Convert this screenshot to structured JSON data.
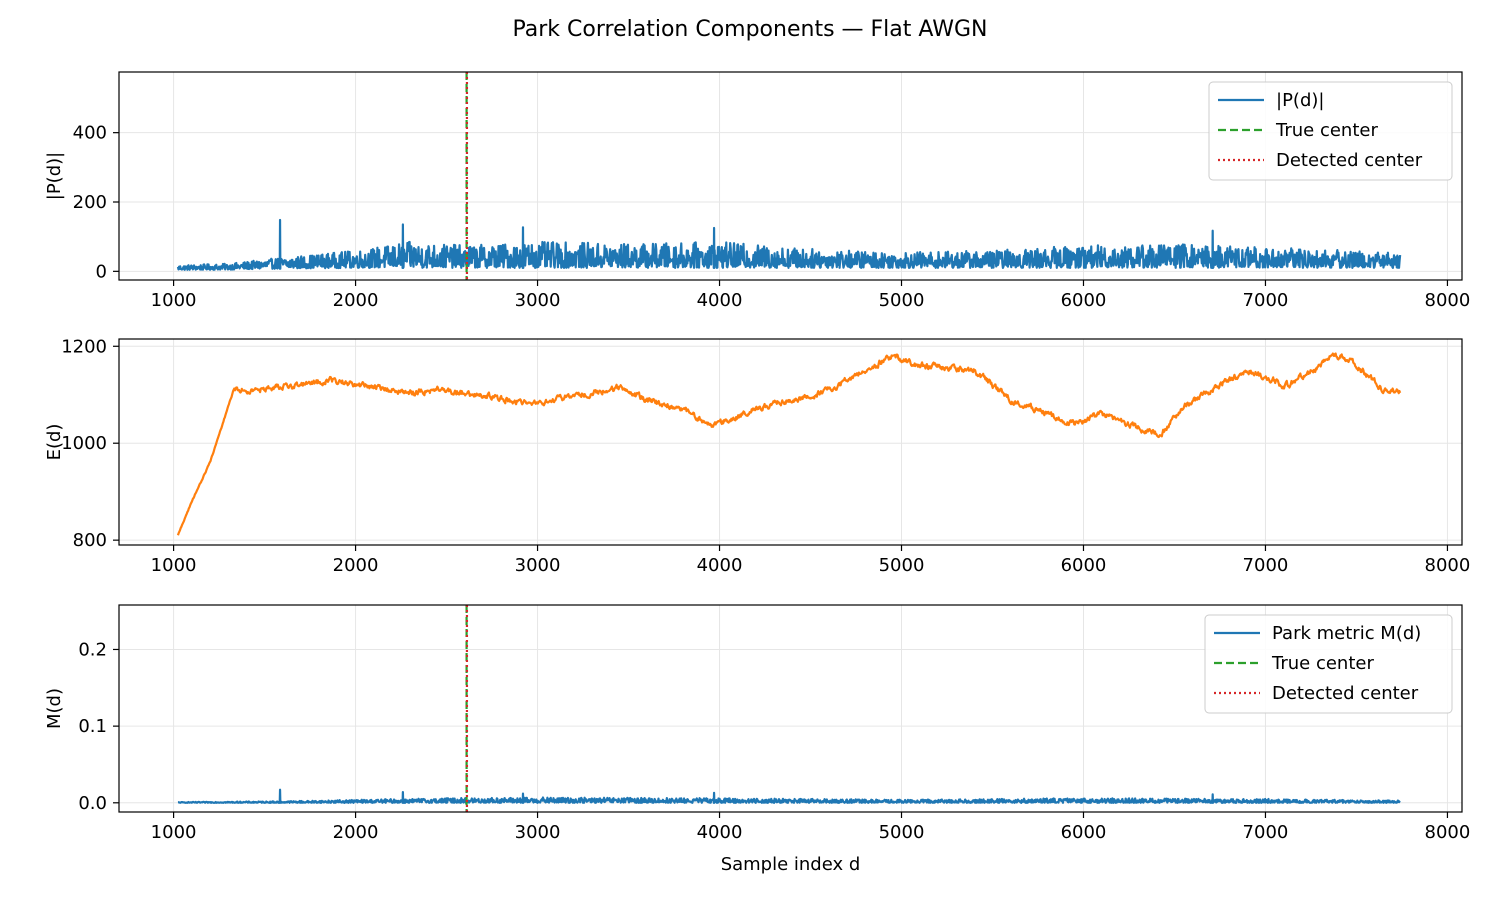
{
  "figure": {
    "title": "Park Correlation Components — Flat AWGN"
  },
  "colors": {
    "blue": "#1f77b4",
    "orange": "#ff7f0e",
    "green": "#2ca02c",
    "red": "#d62728",
    "grid": "#e6e6e6"
  },
  "chart_data": [
    {
      "type": "line",
      "id": "P",
      "ylabel": "|P(d)|",
      "xlabel": "",
      "xlim": [
        700,
        8080
      ],
      "ylim": [
        -25,
        575
      ],
      "xticks": [
        1000,
        2000,
        3000,
        4000,
        5000,
        6000,
        7000,
        8000
      ],
      "yticks": [
        0,
        200,
        400
      ],
      "grid": true,
      "legend_position": "upper right",
      "series": [
        {
          "name": "|P(d)|",
          "color": "#1f77b4",
          "style": "solid",
          "kind": "noise",
          "x_range": [
            1024,
            7740
          ],
          "envelope": {
            "x": [
              1024,
              1300,
              1600,
              2000,
              2300,
              2600,
              3000,
              3500,
              4000,
              4500,
              5000,
              5500,
              6000,
              6500,
              7000,
              7740
            ],
            "upper": [
              18,
              22,
              40,
              60,
              85,
              75,
              85,
              80,
              85,
              65,
              55,
              60,
              75,
              80,
              70,
              55
            ],
            "lower": [
              4,
              5,
              8,
              10,
              10,
              10,
              10,
              10,
              10,
              10,
              10,
              10,
              10,
              10,
              10,
              10
            ]
          },
          "spikes": [
            {
              "x": 1585,
              "y": 148
            },
            {
              "x": 2260,
              "y": 135
            },
            {
              "x": 2920,
              "y": 127
            },
            {
              "x": 3970,
              "y": 125
            },
            {
              "x": 6710,
              "y": 117
            }
          ]
        },
        {
          "name": "True center",
          "color": "#2ca02c",
          "style": "dashed",
          "kind": "vline",
          "x": 2610,
          "y_range": [
            0,
            575
          ]
        },
        {
          "name": "Detected center",
          "color": "#d62728",
          "style": "dotted",
          "kind": "vline",
          "x": 2612,
          "y_range": [
            0,
            575
          ]
        }
      ]
    },
    {
      "type": "line",
      "id": "E",
      "ylabel": "E(d)",
      "xlabel": "",
      "xlim": [
        700,
        8080
      ],
      "ylim": [
        790,
        1215
      ],
      "xticks": [
        1000,
        2000,
        3000,
        4000,
        5000,
        6000,
        7000,
        8000
      ],
      "yticks": [
        800,
        1000,
        1200
      ],
      "grid": true,
      "series": [
        {
          "name": "E(d)",
          "color": "#ff7f0e",
          "style": "solid",
          "kind": "walk",
          "x": [
            1024,
            1100,
            1200,
            1330,
            1400,
            1550,
            1700,
            1850,
            2000,
            2300,
            2450,
            2700,
            2900,
            3000,
            3100,
            3300,
            3450,
            3600,
            3800,
            3950,
            4200,
            4400,
            4500,
            4650,
            4800,
            4950,
            5100,
            5400,
            5600,
            5800,
            5950,
            6100,
            6350,
            6430,
            6550,
            6750,
            6900,
            7050,
            7100,
            7300,
            7350,
            7450,
            7650,
            7740
          ],
          "y": [
            810,
            880,
            960,
            1110,
            1108,
            1115,
            1120,
            1130,
            1122,
            1105,
            1110,
            1100,
            1085,
            1082,
            1090,
            1105,
            1115,
            1090,
            1070,
            1035,
            1070,
            1090,
            1095,
            1120,
            1150,
            1180,
            1160,
            1150,
            1090,
            1060,
            1040,
            1060,
            1025,
            1020,
            1075,
            1120,
            1150,
            1130,
            1115,
            1160,
            1180,
            1175,
            1110,
            1110
          ]
        }
      ]
    },
    {
      "type": "line",
      "id": "M",
      "ylabel": "M(d)",
      "xlabel": "Sample index d",
      "xlim": [
        700,
        8080
      ],
      "ylim": [
        -0.012,
        0.258
      ],
      "xticks": [
        1000,
        2000,
        3000,
        4000,
        5000,
        6000,
        7000,
        8000
      ],
      "yticks": [
        0.0,
        0.1,
        0.2
      ],
      "grid": true,
      "legend_position": "upper right",
      "series": [
        {
          "name": "Park metric M(d)",
          "color": "#1f77b4",
          "style": "solid",
          "kind": "noise",
          "x_range": [
            1024,
            7740
          ],
          "envelope": {
            "x": [
              1024,
              1600,
              2000,
              2500,
              3000,
              4000,
              5000,
              6000,
              7000,
              7740
            ],
            "upper": [
              0.001,
              0.002,
              0.004,
              0.006,
              0.007,
              0.006,
              0.004,
              0.006,
              0.005,
              0.003
            ],
            "lower": [
              0.0,
              0.0,
              0.0,
              0.0,
              0.0,
              0.0,
              0.0,
              0.0,
              0.0,
              0.0
            ]
          },
          "spikes": [
            {
              "x": 1585,
              "y": 0.017
            },
            {
              "x": 2260,
              "y": 0.014
            },
            {
              "x": 2920,
              "y": 0.012
            },
            {
              "x": 3970,
              "y": 0.013
            },
            {
              "x": 6710,
              "y": 0.011
            }
          ]
        },
        {
          "name": "True center",
          "color": "#2ca02c",
          "style": "dashed",
          "kind": "vline",
          "x": 2610,
          "y_range": [
            0,
            0.258
          ]
        },
        {
          "name": "Detected center",
          "color": "#d62728",
          "style": "dotted",
          "kind": "vline",
          "x": 2612,
          "y_range": [
            0,
            0.258
          ]
        }
      ]
    }
  ]
}
